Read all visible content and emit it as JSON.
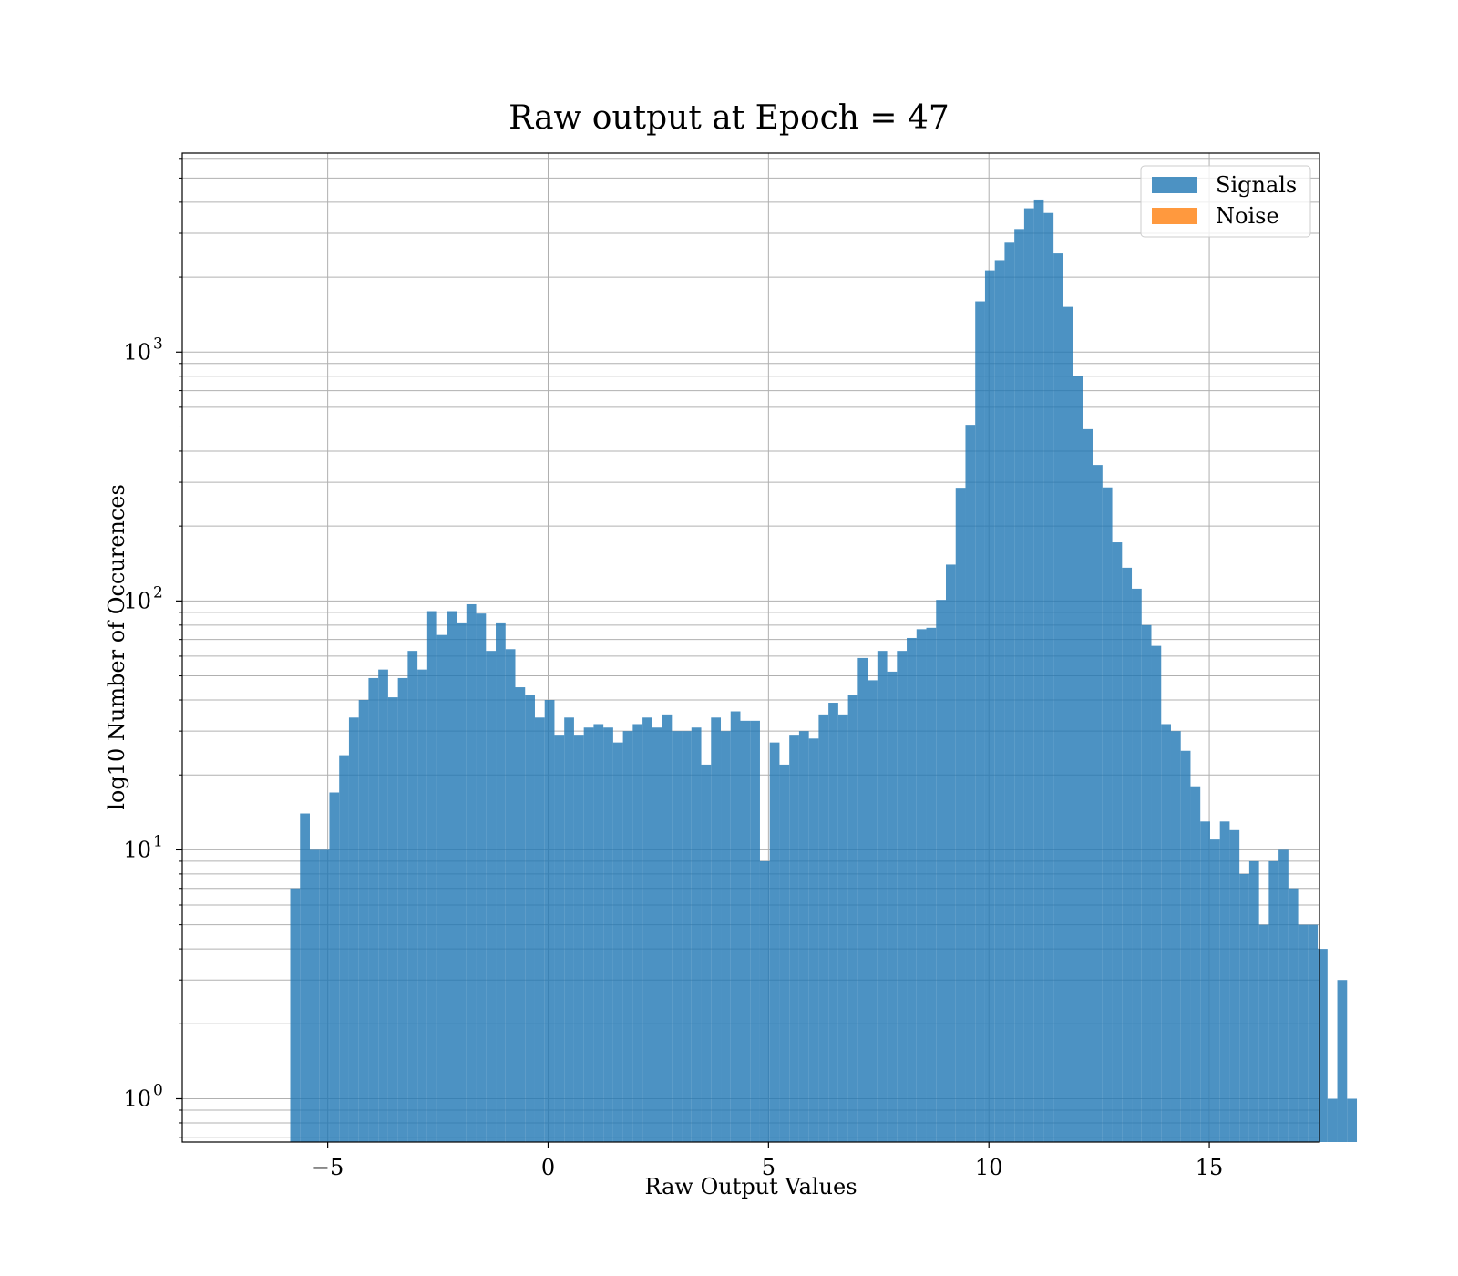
{
  "chart_data": {
    "type": "bar",
    "title": "Raw output at Epoch = 47",
    "xlabel": "Raw Output Values",
    "ylabel": "log10 Number of Occurences",
    "xlim": [
      -8.3,
      17.5
    ],
    "ylim": [
      0.67,
      6300
    ],
    "y_scale": "log",
    "x_ticks": [
      -5,
      0,
      5,
      10,
      15
    ],
    "x_tick_labels": [
      "−5",
      "0",
      "5",
      "10",
      "15"
    ],
    "y_ticks": [
      1,
      10,
      100,
      1000
    ],
    "y_tick_bases": [
      "10",
      "10",
      "10",
      "10"
    ],
    "y_tick_exps": [
      "0",
      "1",
      "2",
      "3"
    ],
    "grid": true,
    "legend_position": "top-right",
    "series": [
      {
        "name": "Signals",
        "color": "#1f77b4",
        "opacity": 0.8,
        "bin_start": -5.85,
        "bin_width": 0.222,
        "values": [
          7,
          14,
          10,
          10,
          17,
          24,
          34,
          40,
          49,
          53,
          41,
          49,
          63,
          53,
          91,
          73,
          91,
          82,
          97,
          89,
          63,
          82,
          64,
          45,
          42,
          34,
          40,
          29,
          34,
          29,
          31,
          32,
          31,
          27,
          30,
          32,
          34,
          31,
          35,
          30,
          30,
          31,
          22,
          34,
          30,
          36,
          33,
          33,
          9,
          27,
          22,
          29,
          30,
          28,
          35,
          39,
          35,
          42,
          59,
          48,
          63,
          52,
          63,
          71,
          77,
          78,
          101,
          140,
          285,
          510,
          1600,
          2130,
          2340,
          2750,
          3120,
          3780,
          4100,
          3620,
          2490,
          1520,
          800,
          490,
          352,
          286,
          172,
          136,
          112,
          80,
          66,
          32,
          30,
          25,
          18,
          13,
          11,
          13,
          12,
          8,
          9,
          5,
          9,
          10,
          7,
          5,
          5,
          4,
          1,
          3,
          1
        ],
        "bins_after_gap": {
          "start_index": 97,
          "note": ""
        }
      },
      {
        "name": "Noise",
        "color": "#ff7f0e",
        "opacity": 0.8,
        "bin_start": -7.2,
        "bin_width": 0.222
      }
    ]
  },
  "legend": {
    "signals_label": "Signals",
    "noise_label": "Noise"
  }
}
